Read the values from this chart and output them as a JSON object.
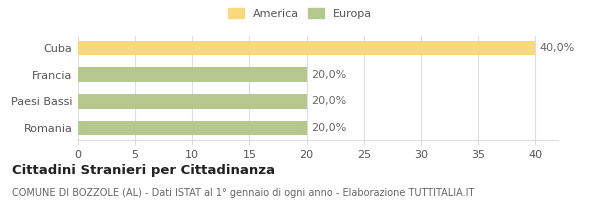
{
  "categories": [
    "Romania",
    "Paesi Bassi",
    "Francia",
    "Cuba"
  ],
  "values": [
    20,
    20,
    20,
    40
  ],
  "colors": [
    "#b5c98e",
    "#b5c98e",
    "#b5c98e",
    "#f9d97c"
  ],
  "labels": [
    "20,0%",
    "20,0%",
    "20,0%",
    "40,0%"
  ],
  "xlim": [
    0,
    42
  ],
  "xticks": [
    0,
    5,
    10,
    15,
    20,
    25,
    30,
    35,
    40
  ],
  "legend_america_color": "#f9d97c",
  "legend_europa_color": "#b5c98e",
  "title_bold": "Cittadini Stranieri per Cittadinanza",
  "subtitle": "COMUNE DI BOZZOLE (AL) - Dati ISTAT al 1° gennaio di ogni anno - Elaborazione TUTTITALIA.IT",
  "bar_height": 0.55,
  "background_color": "#ffffff",
  "grid_color": "#dddddd",
  "label_fontsize": 8.0,
  "axis_fontsize": 8.0,
  "title_fontsize": 9.5,
  "subtitle_fontsize": 7.0
}
